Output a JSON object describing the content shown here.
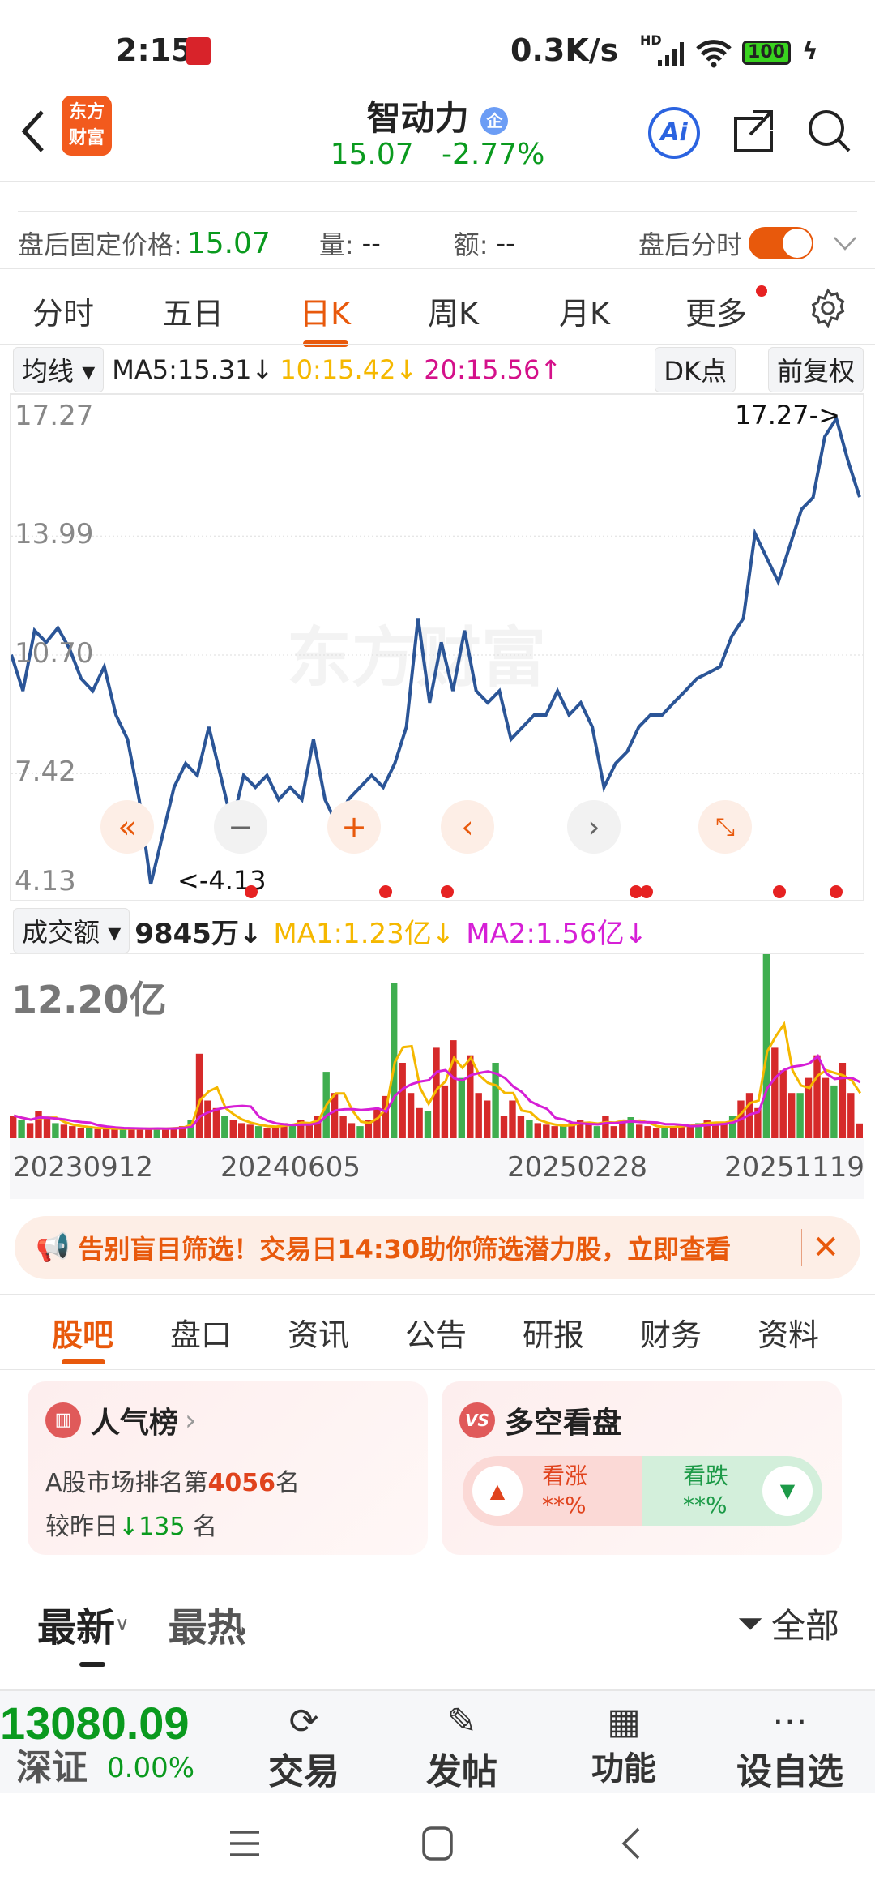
{
  "status_bar": {
    "time": "2:15",
    "network_speed": "0.3K/s",
    "network_type": "HD",
    "battery": "100"
  },
  "header": {
    "back_icon": "chevron-left",
    "logo_text": "东方财富",
    "stock_name": "智动力",
    "badge": "企",
    "price": "15.07",
    "change_pct": "-2.77%",
    "ai_label": "Ai"
  },
  "after_hours": {
    "fixed_price_label": "盘后固定价格:",
    "fixed_price": "15.07",
    "volume_label": "量:",
    "volume": "--",
    "amount_label": "额:",
    "amount": "--",
    "toggle_label": "盘后分时",
    "toggle_on": true
  },
  "period_tabs": [
    {
      "label": "分时"
    },
    {
      "label": "五日"
    },
    {
      "label": "日K",
      "active": true
    },
    {
      "label": "周K"
    },
    {
      "label": "月K"
    },
    {
      "label": "更多"
    }
  ],
  "ma_bar": {
    "selector": "均线",
    "ma5": "MA5:15.31↓",
    "ma10": "10:15.42↓",
    "ma20": "20:15.56↑",
    "dk_label": "DK点",
    "adjust_label": "前复权"
  },
  "colors": {
    "accent": "#e8590c",
    "up": "#d62a2a",
    "down": "#0a9a1e",
    "line": "#2b5597",
    "ma10": "#f5b800",
    "ma20": "#d4118a",
    "ma2": "#d61fd6"
  },
  "watermark": "东方财富",
  "chart_data": [
    {
      "type": "line",
      "title": "",
      "y_ticks": [
        "17.27",
        "13.99",
        "10.70",
        "7.42",
        "4.13"
      ],
      "ylim": [
        4.13,
        17.27
      ],
      "max_label": "17.27->",
      "min_label": "<-4.13",
      "values": [
        10.71,
        9.71,
        11.38,
        11.05,
        11.45,
        10.88,
        10.05,
        9.71,
        10.38,
        9.04,
        8.37,
        6.7,
        4.36,
        5.7,
        7.04,
        7.7,
        7.37,
        8.71,
        7.37,
        6.03,
        7.37,
        7.04,
        7.37,
        6.7,
        7.04,
        6.7,
        8.37,
        6.7,
        6.03,
        6.7,
        7.04,
        7.37,
        7.04,
        7.7,
        8.71,
        11.72,
        9.38,
        11.05,
        9.71,
        11.38,
        9.71,
        9.38,
        9.71,
        8.37,
        8.71,
        9.04,
        9.04,
        9.71,
        9.04,
        9.38,
        8.71,
        7.04,
        7.7,
        8.03,
        8.71,
        9.04,
        9.04,
        9.38,
        9.71,
        10.05,
        10.21,
        10.38,
        11.22,
        11.72,
        14.06,
        13.39,
        12.72,
        13.72,
        14.73,
        15.06,
        16.74,
        17.24,
        16.07,
        15.07
      ]
    },
    {
      "type": "bar",
      "selector": "成交额",
      "last": "9845万↓",
      "ma1": "MA1:1.23亿↓",
      "ma2": "MA2:1.56亿↓",
      "ymax_label": "12.20亿",
      "ylim": [
        0,
        12.2
      ],
      "x_ticks": [
        "20230912",
        "20240605",
        "20250228",
        "20251119"
      ],
      "values": [
        1.5,
        1.2,
        1.0,
        1.8,
        1.3,
        1.0,
        0.9,
        0.8,
        0.7,
        0.7,
        0.6,
        0.7,
        0.6,
        0.6,
        0.7,
        0.6,
        0.6,
        0.7,
        0.6,
        0.7,
        0.8,
        1.2,
        5.6,
        2.5,
        2.0,
        1.5,
        1.2,
        1.0,
        0.9,
        0.8,
        0.7,
        0.8,
        1.0,
        0.9,
        1.2,
        0.9,
        1.5,
        4.4,
        3.0,
        1.5,
        1.0,
        0.8,
        1.2,
        2.0,
        2.8,
        10.3,
        5.0,
        3.0,
        2.0,
        1.8,
        6.0,
        3.5,
        6.5,
        4.0,
        5.5,
        3.0,
        2.5,
        5.0,
        1.5,
        2.5,
        1.5,
        1.2,
        1.0,
        0.9,
        0.8,
        0.8,
        1.0,
        1.2,
        0.9,
        0.8,
        1.5,
        0.8,
        1.2,
        1.4,
        0.9,
        0.8,
        0.7,
        0.7,
        0.8,
        0.9,
        0.8,
        1.0,
        1.2,
        0.9,
        1.0,
        1.5,
        2.5,
        3.0,
        2.0,
        12.2,
        6.0,
        4.5,
        3.0,
        3.0,
        4.0,
        5.5,
        4.0,
        3.5,
        5.0,
        3.0,
        0.98
      ]
    }
  ],
  "banner": {
    "text": "告别盲目筛选！交易日14:30助你筛选潜力股，立即查看"
  },
  "info_tabs": [
    {
      "label": "股吧",
      "active": true
    },
    {
      "label": "盘口"
    },
    {
      "label": "资讯"
    },
    {
      "label": "公告"
    },
    {
      "label": "研报"
    },
    {
      "label": "财务"
    },
    {
      "label": "资料"
    }
  ],
  "popularity": {
    "title": "人气榜",
    "rank_prefix": "A股市场排名第",
    "rank": "4056",
    "rank_suffix": "名",
    "change_prefix": "较昨日",
    "change": "135",
    "change_suffix": "名"
  },
  "bull_bear": {
    "title": "多空看盘",
    "bull_label": "看涨",
    "bull_pct": "**%",
    "bear_label": "看跌",
    "bear_pct": "**%"
  },
  "feed": {
    "latest": "最新",
    "hot": "最热",
    "filter": "全部"
  },
  "bottom_bar": {
    "index_value": "13080.09",
    "index_name": "深证",
    "index_change": "0.00%",
    "items": [
      {
        "label": "交易",
        "icon": "yuan-exchange"
      },
      {
        "label": "发帖",
        "icon": "edit"
      },
      {
        "label": "功能",
        "icon": "grid"
      },
      {
        "label": "设自选",
        "icon": "more"
      }
    ]
  }
}
